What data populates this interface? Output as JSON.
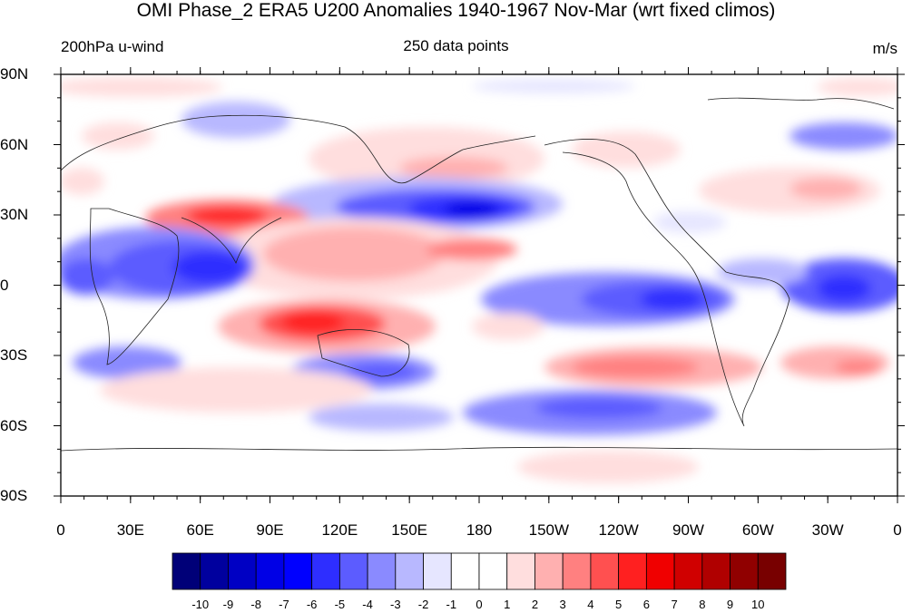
{
  "title": "OMI Phase_2 ERA5 U200 Anomalies 1940-1967 Nov-Mar (wrt fixed climos)",
  "subtitle_left": "200hPa u-wind",
  "subtitle_center": "250 data points",
  "subtitle_right": "m/s",
  "lat_labels": [
    "90N",
    "60N",
    "30N",
    "0",
    "30S",
    "60S",
    "90S"
  ],
  "lon_labels": [
    "0",
    "30E",
    "60E",
    "90E",
    "120E",
    "150E",
    "180",
    "150W",
    "120W",
    "90W",
    "60W",
    "30W",
    "0"
  ],
  "colorbar": {
    "labels": [
      "-10",
      "-9",
      "-8",
      "-7",
      "-6",
      "-5",
      "-4",
      "-3",
      "-2",
      "-1",
      "0",
      "1",
      "2",
      "3",
      "4",
      "5",
      "6",
      "7",
      "8",
      "9",
      "10"
    ],
    "colors": [
      "#000078",
      "#00009e",
      "#0000c4",
      "#0000e6",
      "#0000ff",
      "#2e2eff",
      "#5c5cff",
      "#8a8aff",
      "#b8b8ff",
      "#e6e6ff",
      "#ffffff",
      "#ffffff",
      "#ffdede",
      "#ffb0b0",
      "#ff8080",
      "#ff5050",
      "#ff2020",
      "#f00000",
      "#d00000",
      "#b00000",
      "#900000",
      "#780000"
    ]
  }
}
